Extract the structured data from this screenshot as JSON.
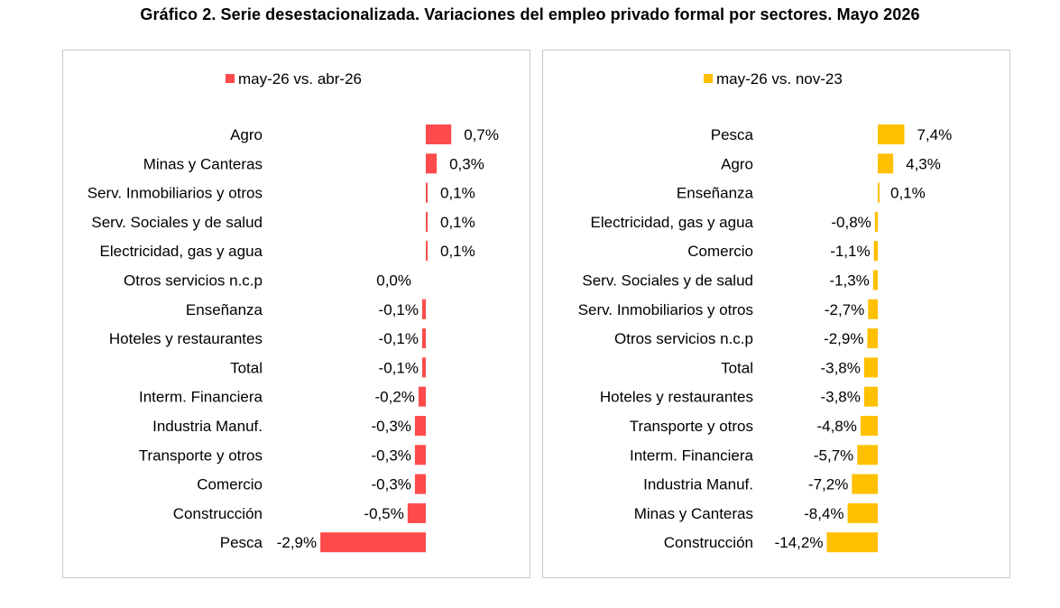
{
  "title": "Gráfico 2. Serie desestacionalizada. Variaciones del empleo privado formal por sectores. Mayo 2026",
  "chart_data": [
    {
      "type": "bar",
      "orientation": "horizontal",
      "legend": "top-center",
      "grid": false,
      "series": [
        {
          "name": "may-26 vs. abr-26",
          "color": "#ff4b4b"
        }
      ],
      "categories": [
        "Agro",
        "Minas y Canteras",
        "Serv. Inmobiliarios y otros",
        "Serv. Sociales y de salud",
        "Electricidad, gas y agua",
        "Otros servicios n.c.p",
        "Enseñanza",
        "Hoteles y restaurantes",
        "Total",
        "Interm. Financiera",
        "Industria Manuf.",
        "Transporte y otros",
        "Comercio",
        "Construcción",
        "Pesca"
      ],
      "values": [
        0.7,
        0.3,
        0.05,
        0.05,
        0.05,
        0.0,
        -0.1,
        -0.1,
        -0.1,
        -0.2,
        -0.3,
        -0.3,
        -0.3,
        -0.5,
        -2.9
      ],
      "labels": [
        "0,7%",
        "0,3%",
        "0,1%",
        "0,1%",
        "0,1%",
        "0,0%",
        "-0,1%",
        "-0,1%",
        "-0,1%",
        "-0,2%",
        "-0,3%",
        "-0,3%",
        "-0,3%",
        "-0,5%",
        "-2,9%"
      ]
    },
    {
      "type": "bar",
      "orientation": "horizontal",
      "legend": "top-center",
      "grid": false,
      "series": [
        {
          "name": "may-26 vs. nov-23",
          "color": "#ffc000"
        }
      ],
      "categories": [
        "Pesca",
        "Agro",
        "Enseñanza",
        "Electricidad, gas y agua",
        "Comercio",
        "Serv. Sociales y de salud",
        "Serv. Inmobiliarios y otros",
        "Otros servicios n.c.p",
        "Total",
        "Hoteles y restaurantes",
        "Transporte y otros",
        "Interm. Financiera",
        "Industria Manuf.",
        "Minas y Canteras",
        "Construcción"
      ],
      "values": [
        7.4,
        4.3,
        0.1,
        -0.8,
        -1.1,
        -1.3,
        -2.7,
        -2.9,
        -3.8,
        -3.8,
        -4.8,
        -5.7,
        -7.2,
        -8.4,
        -14.2
      ],
      "labels": [
        "7,4%",
        "4,3%",
        "0,1%",
        "-0,8%",
        "-1,1%",
        "-1,3%",
        "-2,7%",
        "-2,9%",
        "-3,8%",
        "-3,8%",
        "-4,8%",
        "-5,7%",
        "-7,2%",
        "-8,4%",
        "-14,2%"
      ]
    }
  ]
}
